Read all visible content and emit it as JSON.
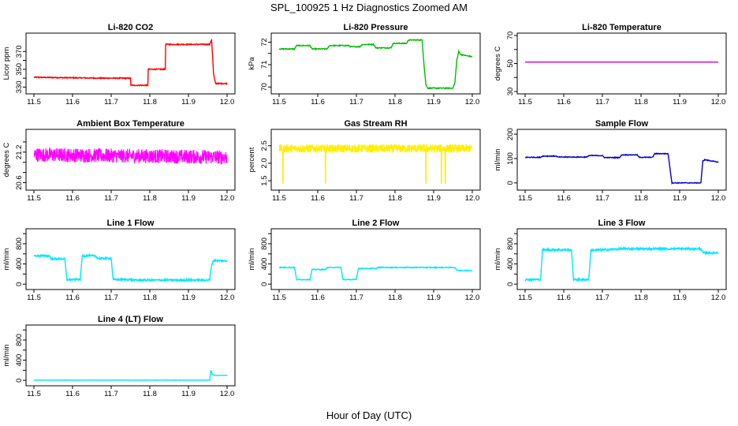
{
  "page": {
    "title": "SPL_100925  1 Hz Diagnostics Zoomed AM",
    "xlabel": "Hour of Day (UTC)"
  },
  "chart_data": [
    {
      "type": "line",
      "title": "Li-820 CO2",
      "ylabel": "Licor ppm",
      "color": "#ff0000",
      "xlim": [
        11.5,
        12.0
      ],
      "ylim": [
        325,
        388
      ],
      "yticks": [
        330,
        350,
        370
      ],
      "yticks2": [
        340,
        360
      ],
      "xticks": [
        11.5,
        11.6,
        11.7,
        11.8,
        11.9,
        12.0
      ],
      "noise": 0.6,
      "series": [
        {
          "x": [
            11.5,
            11.675,
            11.675,
            11.75,
            11.75,
            11.795,
            11.795,
            11.84,
            11.84,
            11.955,
            11.96,
            11.965,
            11.97,
            12.0
          ],
          "y": [
            341,
            340,
            340,
            340,
            332,
            332,
            350,
            350,
            378,
            378,
            383,
            345,
            334,
            334
          ]
        }
      ]
    },
    {
      "type": "line",
      "title": "Li-820 Pressure",
      "ylabel": "kPa",
      "color": "#00bb00",
      "xlim": [
        11.5,
        12.0
      ],
      "ylim": [
        69.8,
        72.3
      ],
      "yticks": [
        70.0,
        71.0,
        72.0
      ],
      "yticks2": [
        70.5,
        71.5
      ],
      "xticks": [
        11.5,
        11.6,
        11.7,
        11.8,
        11.9,
        12.0
      ],
      "noise": 0.02,
      "series": [
        {
          "x": [
            11.5,
            11.54,
            11.545,
            11.58,
            11.585,
            11.625,
            11.63,
            11.68,
            11.685,
            11.71,
            11.715,
            11.745,
            11.75,
            11.79,
            11.795,
            11.83,
            11.835,
            11.87,
            11.875,
            11.88,
            11.885,
            11.95,
            11.955,
            11.96,
            11.965,
            11.97,
            12.0
          ],
          "y": [
            71.7,
            71.7,
            71.85,
            71.85,
            71.7,
            71.7,
            71.85,
            71.85,
            71.8,
            71.8,
            71.9,
            71.9,
            71.75,
            71.75,
            71.95,
            71.95,
            72.1,
            72.1,
            71.0,
            70.1,
            69.95,
            69.95,
            70.2,
            71.2,
            71.6,
            71.45,
            71.35
          ]
        }
      ]
    },
    {
      "type": "line",
      "title": "Li-820 Temperature",
      "ylabel": "degrees C",
      "color": "#cc00cc",
      "xlim": [
        11.5,
        12.0
      ],
      "ylim": [
        30,
        70
      ],
      "yticks": [
        30,
        50,
        70
      ],
      "yticks2": [
        40,
        60
      ],
      "xticks": [
        11.5,
        11.6,
        11.7,
        11.8,
        11.9,
        12.0
      ],
      "noise": 0,
      "series": [
        {
          "x": [
            11.5,
            12.0
          ],
          "y": [
            51,
            51
          ]
        }
      ]
    },
    {
      "type": "line",
      "title": "Ambient Box Temperature",
      "ylabel": "degrees C",
      "color": "#ff00ff",
      "xlim": [
        11.5,
        12.0
      ],
      "ylim": [
        20.5,
        21.6
      ],
      "yticks": [
        20.6,
        21.2
      ],
      "yticks2": [
        20.8,
        21.0,
        21.4
      ],
      "xticks": [
        11.5,
        11.6,
        11.7,
        11.8,
        11.9,
        12.0
      ],
      "noise": 0.14,
      "dense": true,
      "series": [
        {
          "x": [
            11.5,
            12.0
          ],
          "y": [
            21.15,
            21.1
          ]
        }
      ]
    },
    {
      "type": "line",
      "title": "Gas Stream RH",
      "ylabel": "percent",
      "color": "#ffee00",
      "xlim": [
        11.5,
        12.0
      ],
      "ylim": [
        1.3,
        2.9
      ],
      "yticks": [
        1.5,
        2.0,
        2.5
      ],
      "yticks2": [],
      "xticks": [
        11.5,
        11.6,
        11.7,
        11.8,
        11.9,
        12.0
      ],
      "noise": 0.12,
      "dense": true,
      "spikes": [
        11.51,
        11.62,
        11.88,
        11.92,
        11.93
      ],
      "series": [
        {
          "x": [
            11.5,
            12.0
          ],
          "y": [
            2.42,
            2.42
          ]
        }
      ]
    },
    {
      "type": "line",
      "title": "Sample Flow",
      "ylabel": "ml/min",
      "color": "#0000cc",
      "xlim": [
        11.5,
        12.0
      ],
      "ylim": [
        -20,
        210
      ],
      "yticks": [
        0,
        100,
        200
      ],
      "yticks2": [],
      "xticks": [
        11.5,
        11.6,
        11.7,
        11.8,
        11.9,
        12.0
      ],
      "noise": 1.5,
      "series": [
        {
          "x": [
            11.5,
            11.54,
            11.545,
            11.58,
            11.585,
            11.66,
            11.665,
            11.7,
            11.705,
            11.745,
            11.75,
            11.79,
            11.795,
            11.83,
            11.835,
            11.87,
            11.875,
            11.88,
            11.955,
            11.96,
            11.965,
            12.0
          ],
          "y": [
            105,
            105,
            110,
            110,
            106,
            106,
            112,
            112,
            104,
            104,
            115,
            115,
            105,
            105,
            120,
            120,
            60,
            0,
            0,
            90,
            95,
            85
          ]
        }
      ]
    },
    {
      "type": "line",
      "title": "Line 1 Flow",
      "ylabel": "ml/min",
      "color": "#00e5ff",
      "xlim": [
        11.5,
        12.0
      ],
      "ylim": [
        -60,
        1050
      ],
      "yticks": [
        0,
        400,
        800
      ],
      "yticks2": [
        200,
        600,
        1000
      ],
      "xticks": [
        11.5,
        11.6,
        11.7,
        11.8,
        11.9,
        12.0
      ],
      "noise": 18,
      "series": [
        {
          "x": [
            11.5,
            11.54,
            11.545,
            11.58,
            11.585,
            11.62,
            11.625,
            11.66,
            11.665,
            11.7,
            11.705,
            11.75,
            11.755,
            11.955,
            11.96,
            11.965,
            12.0
          ],
          "y": [
            560,
            560,
            500,
            500,
            90,
            90,
            560,
            560,
            510,
            510,
            90,
            90,
            80,
            80,
            380,
            470,
            460
          ]
        }
      ]
    },
    {
      "type": "line",
      "title": "Line 2 Flow",
      "ylabel": "ml/min",
      "color": "#00e5ff",
      "xlim": [
        11.5,
        12.0
      ],
      "ylim": [
        -60,
        1050
      ],
      "yticks": [
        0,
        400,
        800
      ],
      "yticks2": [
        200,
        600,
        1000
      ],
      "xticks": [
        11.5,
        11.6,
        11.7,
        11.8,
        11.9,
        12.0
      ],
      "noise": 8,
      "series": [
        {
          "x": [
            11.5,
            11.54,
            11.545,
            11.58,
            11.585,
            11.62,
            11.625,
            11.66,
            11.665,
            11.7,
            11.705,
            11.75,
            11.755,
            11.955,
            11.96,
            12.0
          ],
          "y": [
            330,
            330,
            90,
            90,
            290,
            290,
            330,
            330,
            90,
            90,
            310,
            310,
            330,
            330,
            270,
            270
          ]
        }
      ]
    },
    {
      "type": "line",
      "title": "Line 3 Flow",
      "ylabel": "ml/min",
      "color": "#00e5ff",
      "xlim": [
        11.5,
        12.0
      ],
      "ylim": [
        -60,
        1050
      ],
      "yticks": [
        0,
        400,
        800
      ],
      "yticks2": [
        200,
        600,
        1000
      ],
      "xticks": [
        11.5,
        11.6,
        11.7,
        11.8,
        11.9,
        12.0
      ],
      "noise": 20,
      "series": [
        {
          "x": [
            11.5,
            11.54,
            11.545,
            11.62,
            11.625,
            11.665,
            11.67,
            11.705,
            11.755,
            11.955,
            11.96,
            12.0
          ],
          "y": [
            90,
            90,
            680,
            680,
            90,
            90,
            670,
            680,
            700,
            700,
            620,
            620
          ]
        }
      ]
    },
    {
      "type": "line",
      "title": "Line 4 (LT) Flow",
      "ylabel": "ml/min",
      "color": "#00e5ff",
      "xlim": [
        11.5,
        12.0
      ],
      "ylim": [
        -60,
        1050
      ],
      "yticks": [
        0,
        400,
        800
      ],
      "yticks2": [
        200,
        600,
        1000
      ],
      "xticks": [
        11.5,
        11.6,
        11.7,
        11.8,
        11.9,
        12.0
      ],
      "noise": 2,
      "series": [
        {
          "x": [
            11.5,
            11.955,
            11.958,
            11.962,
            11.967,
            12.0
          ],
          "y": [
            5,
            5,
            200,
            120,
            100,
            100
          ]
        }
      ]
    }
  ]
}
